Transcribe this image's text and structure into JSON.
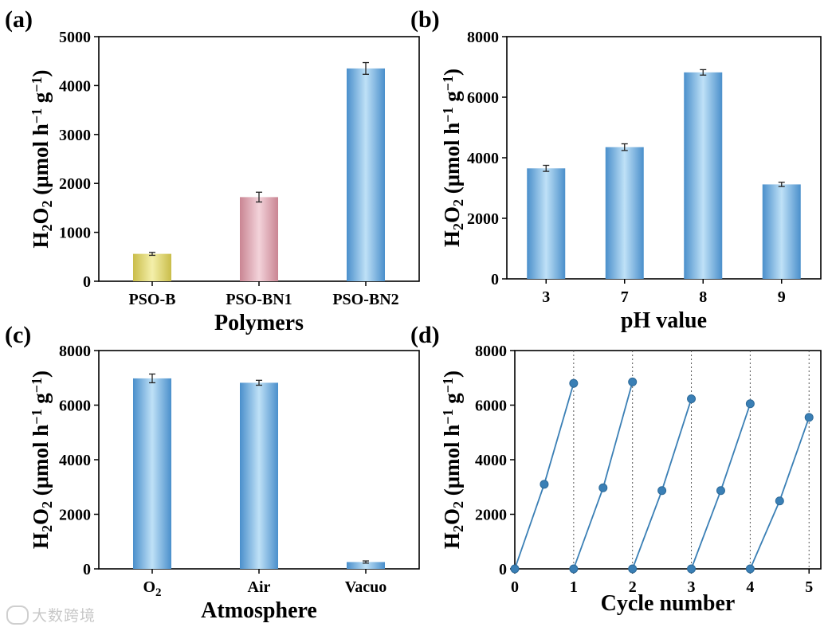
{
  "chart_data": [
    {
      "id": "a",
      "type": "bar",
      "panel_label": "(a)",
      "categories": [
        "PSO-B",
        "PSO-BN1",
        "PSO-BN2"
      ],
      "values": [
        560,
        1720,
        4350
      ],
      "errors": [
        30,
        100,
        120
      ],
      "colors": [
        "#e6dd7a",
        "#e2a9b4",
        "#6fb0e2"
      ],
      "xlabel": "Polymers",
      "ylabel": {
        "pre": "H",
        "sub1": "2",
        "mid": "O",
        "sub2": "2",
        "post": " (μmol h",
        "sup1": "−1",
        "post2": " g",
        "sup2": "−1",
        "end": ")"
      },
      "ylim": [
        0,
        5000
      ],
      "yticks": [
        0,
        1000,
        2000,
        3000,
        4000,
        5000
      ]
    },
    {
      "id": "b",
      "type": "bar",
      "panel_label": "(b)",
      "categories": [
        "3",
        "7",
        "8",
        "9"
      ],
      "values": [
        3650,
        4350,
        6820,
        3120
      ],
      "errors": [
        100,
        110,
        90,
        70
      ],
      "colors": [
        "#6fb0e2",
        "#6fb0e2",
        "#6fb0e2",
        "#6fb0e2"
      ],
      "xlabel": "pH value",
      "ylabel": {
        "pre": "H",
        "sub1": "2",
        "mid": "O",
        "sub2": "2",
        "post": " (μmol h",
        "sup1": "−1",
        "post2": " g",
        "sup2": "−1",
        "end": ")"
      },
      "ylim": [
        0,
        8000
      ],
      "yticks": [
        0,
        2000,
        4000,
        6000,
        8000
      ]
    },
    {
      "id": "c",
      "type": "bar",
      "panel_label": "(c)",
      "categories": [
        {
          "main": "O",
          "sub": "2"
        },
        {
          "main": "Air",
          "sub": ""
        },
        {
          "main": "Vacuo",
          "sub": ""
        }
      ],
      "values": [
        6980,
        6820,
        250
      ],
      "errors": [
        160,
        90,
        40
      ],
      "colors": [
        "#6fb0e2",
        "#6fb0e2",
        "#6fb0e2"
      ],
      "xlabel": "Atmosphere",
      "ylabel": {
        "pre": "H",
        "sub1": "2",
        "mid": "O",
        "sub2": "2",
        "post": " (μmol h",
        "sup1": "−1",
        "post2": " g",
        "sup2": "−1",
        "end": ")"
      },
      "ylim": [
        0,
        8000
      ],
      "yticks": [
        0,
        2000,
        4000,
        6000,
        8000
      ]
    },
    {
      "id": "d",
      "type": "line",
      "panel_label": "(d)",
      "segments": [
        [
          [
            0,
            0
          ],
          [
            0.5,
            3100
          ],
          [
            1,
            6800
          ]
        ],
        [
          [
            1,
            0
          ],
          [
            1.5,
            2970
          ],
          [
            2,
            6850
          ]
        ],
        [
          [
            2,
            0
          ],
          [
            2.5,
            2870
          ],
          [
            3,
            6230
          ]
        ],
        [
          [
            3,
            0
          ],
          [
            3.5,
            2870
          ],
          [
            4,
            6050
          ]
        ],
        [
          [
            4,
            0
          ],
          [
            4.5,
            2490
          ],
          [
            5,
            5550
          ]
        ]
      ],
      "color": "#3a7fb5",
      "xlabel": "Cycle number",
      "ylabel": {
        "pre": "H",
        "sub1": "2",
        "mid": "O",
        "sub2": "2",
        "post": " (μmol h",
        "sup1": "−1",
        "post2": " g",
        "sup2": "−1",
        "end": ")"
      },
      "xlim": [
        0,
        5.2
      ],
      "ylim": [
        0,
        8000
      ],
      "xticks": [
        0,
        1,
        2,
        3,
        4,
        5
      ],
      "yticks": [
        0,
        2000,
        4000,
        6000,
        8000
      ],
      "vlines": [
        1,
        2,
        3,
        4,
        5
      ]
    }
  ],
  "watermark": {
    "text": "大数跨境"
  }
}
